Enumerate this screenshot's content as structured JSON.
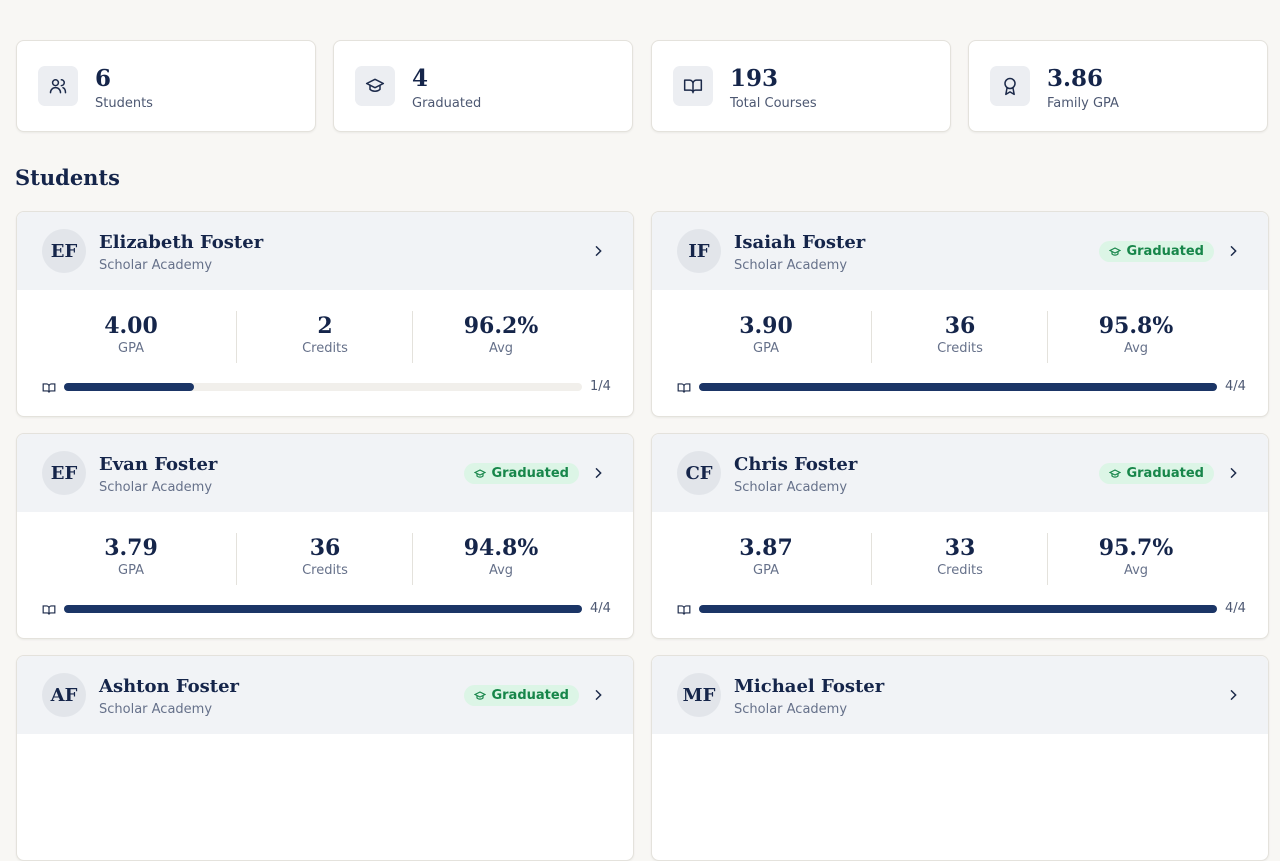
{
  "stats": [
    {
      "value": "6",
      "label": "Students",
      "icon": "users"
    },
    {
      "value": "4",
      "label": "Graduated",
      "icon": "cap"
    },
    {
      "value": "193",
      "label": "Total Courses",
      "icon": "book"
    },
    {
      "value": "3.86",
      "label": "Family GPA",
      "icon": "award"
    }
  ],
  "section_title": "Students",
  "students": [
    {
      "initials": "EF",
      "name": "Elizabeth Foster",
      "school": "Scholar Academy",
      "gpa": "4.00",
      "gpa_label": "GPA",
      "credits": "2",
      "credits_label": "Credits",
      "avg": "96.2%",
      "avg_label": "Avg",
      "progress": {
        "done": 1,
        "total": 4,
        "label": "1/4"
      }
    },
    {
      "initials": "IF",
      "name": "Isaiah Foster",
      "school": "Scholar Academy",
      "badge": "Graduated",
      "gpa": "3.90",
      "gpa_label": "GPA",
      "credits": "36",
      "credits_label": "Credits",
      "avg": "95.8%",
      "avg_label": "Avg",
      "progress": {
        "done": 4,
        "total": 4,
        "label": "4/4"
      }
    },
    {
      "initials": "EF",
      "name": "Evan Foster",
      "school": "Scholar Academy",
      "badge": "Graduated",
      "gpa": "3.79",
      "gpa_label": "GPA",
      "credits": "36",
      "credits_label": "Credits",
      "avg": "94.8%",
      "avg_label": "Avg",
      "progress": {
        "done": 4,
        "total": 4,
        "label": "4/4"
      }
    },
    {
      "initials": "CF",
      "name": "Chris Foster",
      "school": "Scholar Academy",
      "badge": "Graduated",
      "gpa": "3.87",
      "gpa_label": "GPA",
      "credits": "33",
      "credits_label": "Credits",
      "avg": "95.7%",
      "avg_label": "Avg",
      "progress": {
        "done": 4,
        "total": 4,
        "label": "4/4"
      }
    },
    {
      "initials": "AF",
      "name": "Ashton Foster",
      "school": "Scholar Academy",
      "badge": "Graduated"
    },
    {
      "initials": "MF",
      "name": "Michael Foster",
      "school": "Scholar Academy"
    }
  ]
}
